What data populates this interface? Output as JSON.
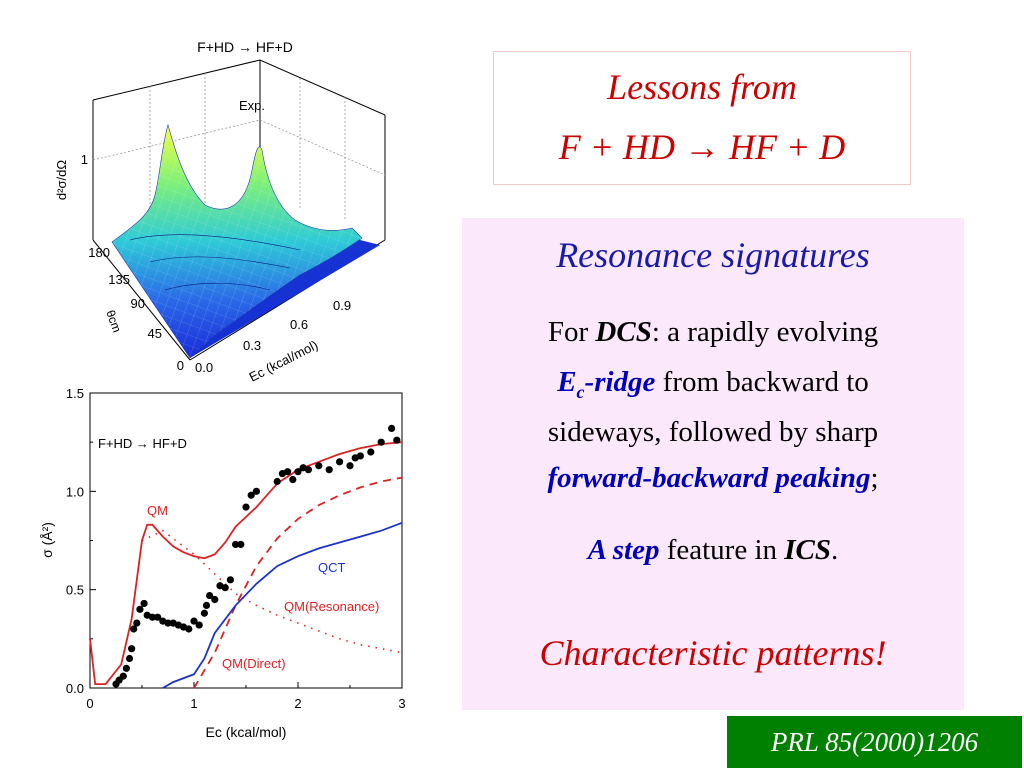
{
  "title": {
    "line1": "Lessons from",
    "line2": "F + HD  → HF + D"
  },
  "panel": {
    "heading": "Resonance signatures",
    "p1_for": "For ",
    "p1_dcs": "DCS",
    "p1_rest": ": a rapidly evolving",
    "p2_e": "E",
    "p2_sub": "c",
    "p2_ridge": "-ridge",
    "p2_rest": " from backward to",
    "p3": "sideways, followed by sharp",
    "p4_fb": "forward-backward peaking",
    "p4_semi": ";",
    "p5_step": "A step",
    "p5_mid": " feature in ",
    "p5_ics": "ICS",
    "p5_end": ".",
    "conclusion": "Characteristic patterns!"
  },
  "citation": "PRL 85(2000)1206",
  "surface_plot": {
    "title": "F+HD → HF+D",
    "label": "Exp.",
    "zlabel": "d²σ/dΩ",
    "ztick": "1",
    "theta_label": "θcm",
    "theta_ticks": [
      "180",
      "135",
      "90",
      "45",
      "0"
    ],
    "e_ticks": [
      "0.0",
      "0.3",
      "0.6",
      "0.9"
    ],
    "e_label": "Ec (kcal/mol)"
  },
  "chart_data": {
    "type": "line",
    "title": "F+HD → HF+D",
    "xlabel": "Ec (kcal/mol)",
    "ylabel": "σ (Å²)",
    "xlim": [
      0,
      3
    ],
    "ylim": [
      0,
      1.5
    ],
    "x_ticks": [
      "0",
      "1",
      "2",
      "3"
    ],
    "y_ticks": [
      "0.0",
      "0.5",
      "1.0",
      "1.5"
    ],
    "series": [
      {
        "name": "QM",
        "color": "#dd2222",
        "style": "solid",
        "x": [
          0,
          0.05,
          0.15,
          0.3,
          0.4,
          0.5,
          0.55,
          0.6,
          0.7,
          0.8,
          0.9,
          1.0,
          1.1,
          1.2,
          1.3,
          1.4,
          1.5,
          1.6,
          1.7,
          1.8,
          2.0,
          2.2,
          2.4,
          2.6,
          2.8,
          3.0
        ],
        "y": [
          0.25,
          0.02,
          0.02,
          0.12,
          0.35,
          0.75,
          0.83,
          0.83,
          0.77,
          0.72,
          0.69,
          0.67,
          0.66,
          0.68,
          0.74,
          0.82,
          0.87,
          0.92,
          0.98,
          1.04,
          1.11,
          1.15,
          1.19,
          1.22,
          1.24,
          1.25
        ]
      },
      {
        "name": "QM(Resonance)",
        "color": "#dd2222",
        "style": "dashed",
        "x": [
          1.0,
          1.2,
          1.4,
          1.6,
          1.8,
          2.0,
          2.2,
          2.4,
          2.6,
          2.8,
          3.0
        ],
        "y": [
          0.0,
          0.18,
          0.42,
          0.62,
          0.76,
          0.86,
          0.93,
          0.98,
          1.02,
          1.05,
          1.07
        ]
      },
      {
        "name": "QM(Direct)",
        "color": "#dd2222",
        "style": "dotted",
        "x": [
          0.5,
          0.7,
          1.0,
          1.2,
          1.4,
          1.6,
          1.8,
          2.0,
          2.2,
          2.4,
          2.6,
          2.8,
          3.0
        ],
        "y": [
          0.75,
          0.8,
          0.68,
          0.58,
          0.48,
          0.42,
          0.37,
          0.33,
          0.29,
          0.25,
          0.22,
          0.2,
          0.18
        ]
      },
      {
        "name": "QCT",
        "color": "#1a33cc",
        "style": "solid",
        "x": [
          0.7,
          0.8,
          1.0,
          1.1,
          1.2,
          1.4,
          1.6,
          1.8,
          2.0,
          2.2,
          2.4,
          2.6,
          2.8,
          3.0
        ],
        "y": [
          0.0,
          0.03,
          0.07,
          0.15,
          0.28,
          0.42,
          0.53,
          0.62,
          0.67,
          0.71,
          0.74,
          0.77,
          0.8,
          0.84
        ]
      },
      {
        "name": "Exp.",
        "color": "#000000",
        "style": "points",
        "x": [
          0.25,
          0.28,
          0.32,
          0.35,
          0.38,
          0.4,
          0.42,
          0.45,
          0.48,
          0.52,
          0.55,
          0.6,
          0.65,
          0.7,
          0.75,
          0.8,
          0.85,
          0.9,
          0.95,
          1.0,
          1.05,
          1.1,
          1.12,
          1.15,
          1.2,
          1.25,
          1.3,
          1.35,
          1.4,
          1.45,
          1.5,
          1.55,
          1.6,
          1.8,
          1.85,
          1.9,
          1.95,
          2.0,
          2.05,
          2.1,
          2.2,
          2.3,
          2.4,
          2.5,
          2.55,
          2.6,
          2.7,
          2.8,
          2.9,
          2.95
        ],
        "y": [
          0.02,
          0.04,
          0.06,
          0.1,
          0.15,
          0.2,
          0.3,
          0.33,
          0.4,
          0.43,
          0.37,
          0.36,
          0.36,
          0.34,
          0.33,
          0.33,
          0.32,
          0.31,
          0.3,
          0.34,
          0.32,
          0.38,
          0.42,
          0.47,
          0.45,
          0.52,
          0.51,
          0.55,
          0.73,
          0.73,
          0.92,
          0.98,
          1.0,
          1.05,
          1.09,
          1.1,
          1.06,
          1.1,
          1.12,
          1.11,
          1.13,
          1.11,
          1.15,
          1.13,
          1.17,
          1.18,
          1.2,
          1.25,
          1.32,
          1.26
        ]
      }
    ],
    "annotations": [
      "QM",
      "QCT",
      "QM(Resonance)",
      "QM(Direct)"
    ]
  }
}
